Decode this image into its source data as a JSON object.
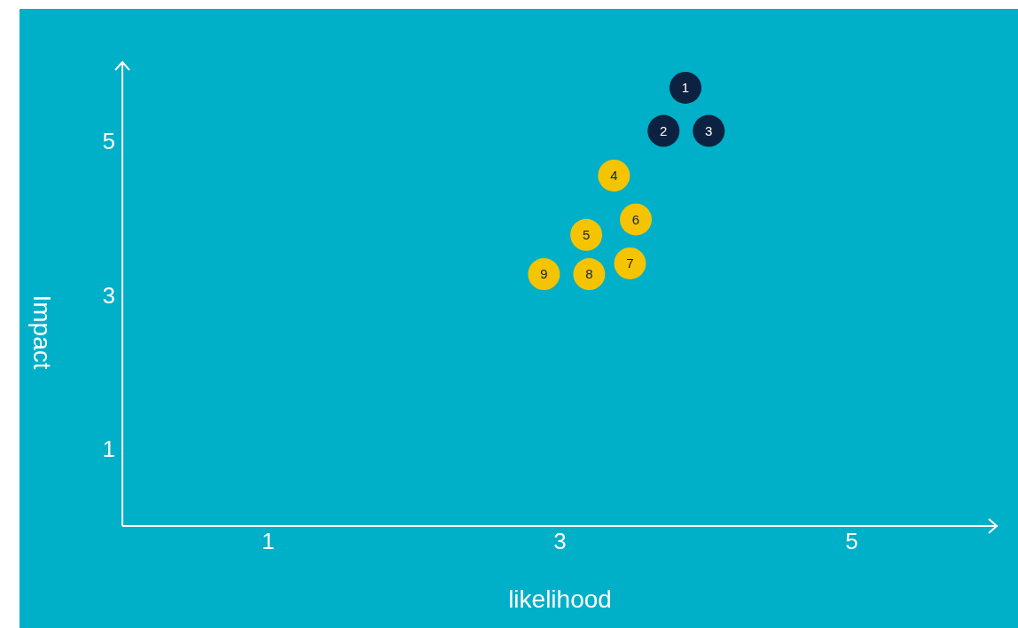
{
  "chart_data": {
    "type": "scatter",
    "xlabel": "likelihood",
    "ylabel": "Impact",
    "xlim": [
      0,
      6
    ],
    "ylim": [
      0,
      6
    ],
    "xticks": [
      1,
      3,
      5
    ],
    "yticks": [
      1,
      3,
      5
    ],
    "marker": "circle",
    "series": [
      {
        "color": "#0d2240",
        "x": [
          3.86,
          3.71,
          4.02
        ],
        "values": [
          5.69,
          5.13,
          5.13
        ]
      },
      {
        "color": "#f5c400",
        "x": [
          3.37,
          3.18,
          3.52,
          3.48,
          3.2,
          2.89
        ],
        "values": [
          4.55,
          3.78,
          3.98,
          3.41,
          3.27,
          3.27
        ]
      }
    ],
    "annotations": [
      {
        "text": "1",
        "x": 3.86,
        "y": 5.69
      },
      {
        "text": "2",
        "x": 3.71,
        "y": 5.13
      },
      {
        "text": "3",
        "x": 4.02,
        "y": 5.13
      },
      {
        "text": "4",
        "x": 3.37,
        "y": 4.55
      },
      {
        "text": "5",
        "x": 3.18,
        "y": 3.78
      },
      {
        "text": "6",
        "x": 3.52,
        "y": 3.98
      },
      {
        "text": "7",
        "x": 3.48,
        "y": 3.41
      },
      {
        "text": "8",
        "x": 3.2,
        "y": 3.27
      },
      {
        "text": "9",
        "x": 2.89,
        "y": 3.27
      }
    ]
  }
}
